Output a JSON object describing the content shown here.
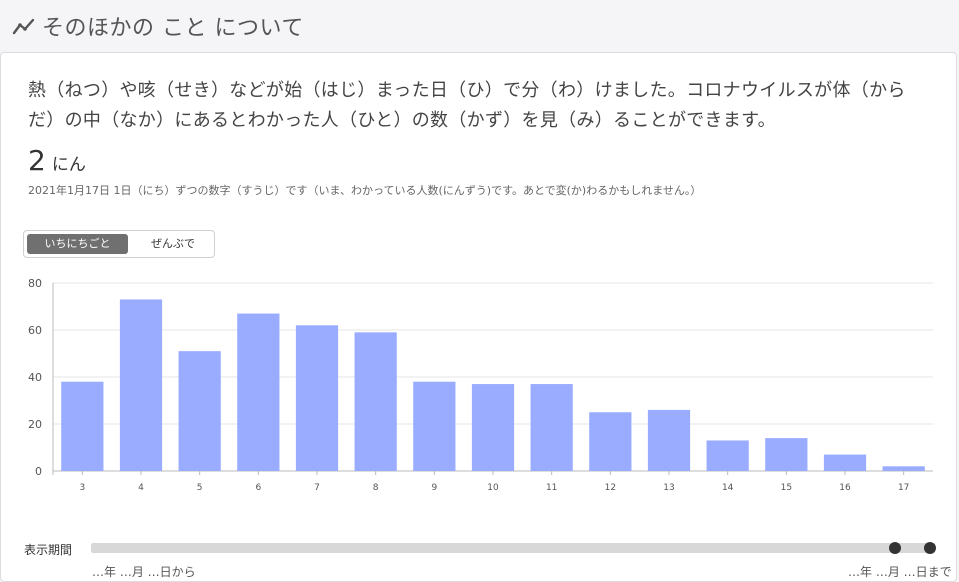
{
  "header": {
    "title": "そのほかの こと について",
    "icon": "line-chart-icon"
  },
  "card": {
    "description": "熱（ねつ）や咳（せき）などが始（はじ）まった日（ひ）で分（わ）けました。コロナウイルスが体（からだ）の中（なか）にあるとわかった人（ひと）の数（かず）を見（み）ることができます。",
    "value": "2",
    "unit": "にん",
    "note": "2021年1月17日 1日（にち）ずつの数字（すうじ）です（いま、わかっている人数(にんずう)です。あとで変(か)わるかもしれません。）"
  },
  "toggle": {
    "daily_label": "いちにちごと",
    "total_label": "ぜんぶで",
    "active": "daily"
  },
  "slider": {
    "label": "表示期間",
    "start_text": "…年 …月 …日から",
    "end_text": "…年 …月 …日まで"
  },
  "chart_data": {
    "type": "bar",
    "categories": [
      "3",
      "4",
      "5",
      "6",
      "7",
      "8",
      "9",
      "10",
      "11",
      "12",
      "13",
      "14",
      "15",
      "16",
      "17"
    ],
    "values": [
      38,
      73,
      51,
      67,
      62,
      59,
      38,
      37,
      37,
      25,
      26,
      13,
      14,
      7,
      2
    ],
    "ylim": [
      0,
      80
    ],
    "yticks": [
      0,
      20,
      40,
      60,
      80
    ],
    "bar_color": "#9aacff",
    "grid": true
  }
}
